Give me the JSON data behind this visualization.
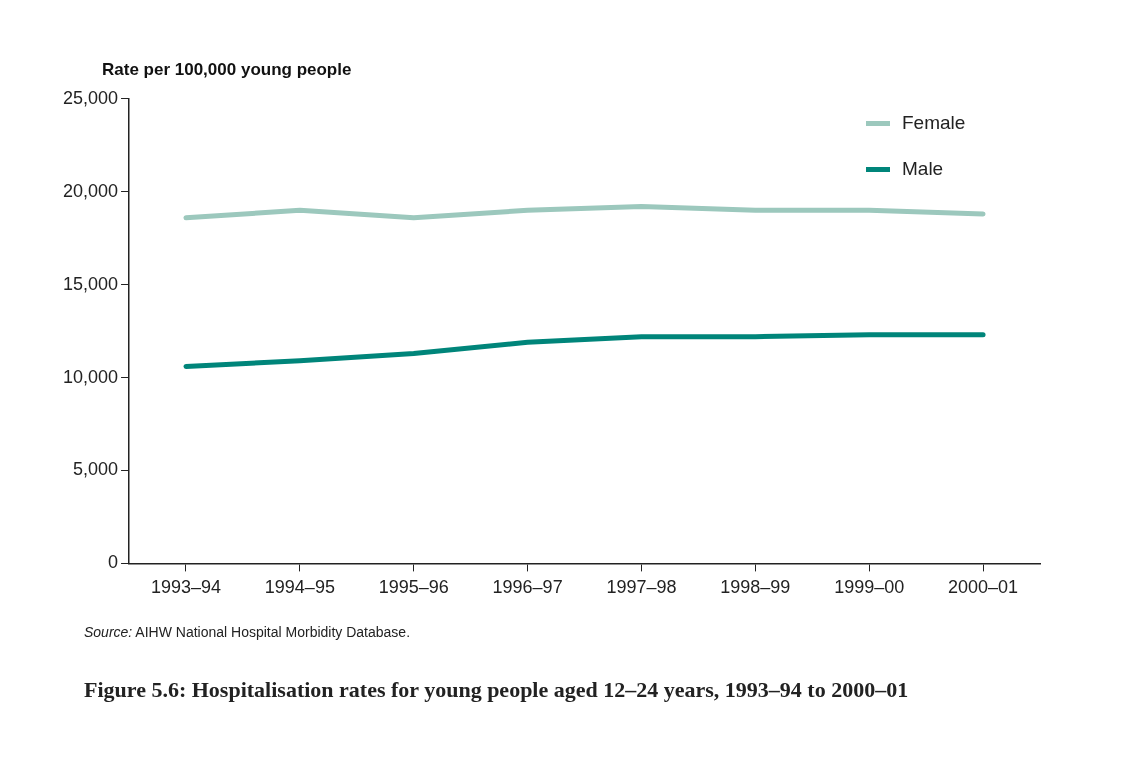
{
  "chart_data": {
    "type": "line",
    "title": "Figure 5.6: Hospitalisation rates for young people aged 12–24 years, 1993–94 to 2000–01",
    "ylabel": "Rate per 100,000 young people",
    "categories": [
      "1993–94",
      "1994–95",
      "1995–96",
      "1996–97",
      "1997–98",
      "1998–99",
      "1999–00",
      "2000–01"
    ],
    "series": [
      {
        "name": "Female",
        "color": "#9cc8bd",
        "values": [
          18600,
          19000,
          18600,
          19000,
          19200,
          19000,
          19000,
          18800
        ]
      },
      {
        "name": "Male",
        "color": "#00857a",
        "values": [
          10600,
          10900,
          11300,
          11900,
          12200,
          12200,
          12300,
          12300
        ]
      }
    ],
    "ylim": [
      0,
      25000
    ],
    "yticks": [
      {
        "value": 0,
        "label": "0"
      },
      {
        "value": 5000,
        "label": "5,000"
      },
      {
        "value": 10000,
        "label": "10,000"
      },
      {
        "value": 15000,
        "label": "15,000"
      },
      {
        "value": 20000,
        "label": "20,000"
      },
      {
        "value": 25000,
        "label": "25,000"
      }
    ],
    "grid": false,
    "legend": "top right",
    "marker": "none",
    "line_style": "solid",
    "annotations": [
      "Source: AIHW National Hospital Morbidity Database."
    ]
  }
}
